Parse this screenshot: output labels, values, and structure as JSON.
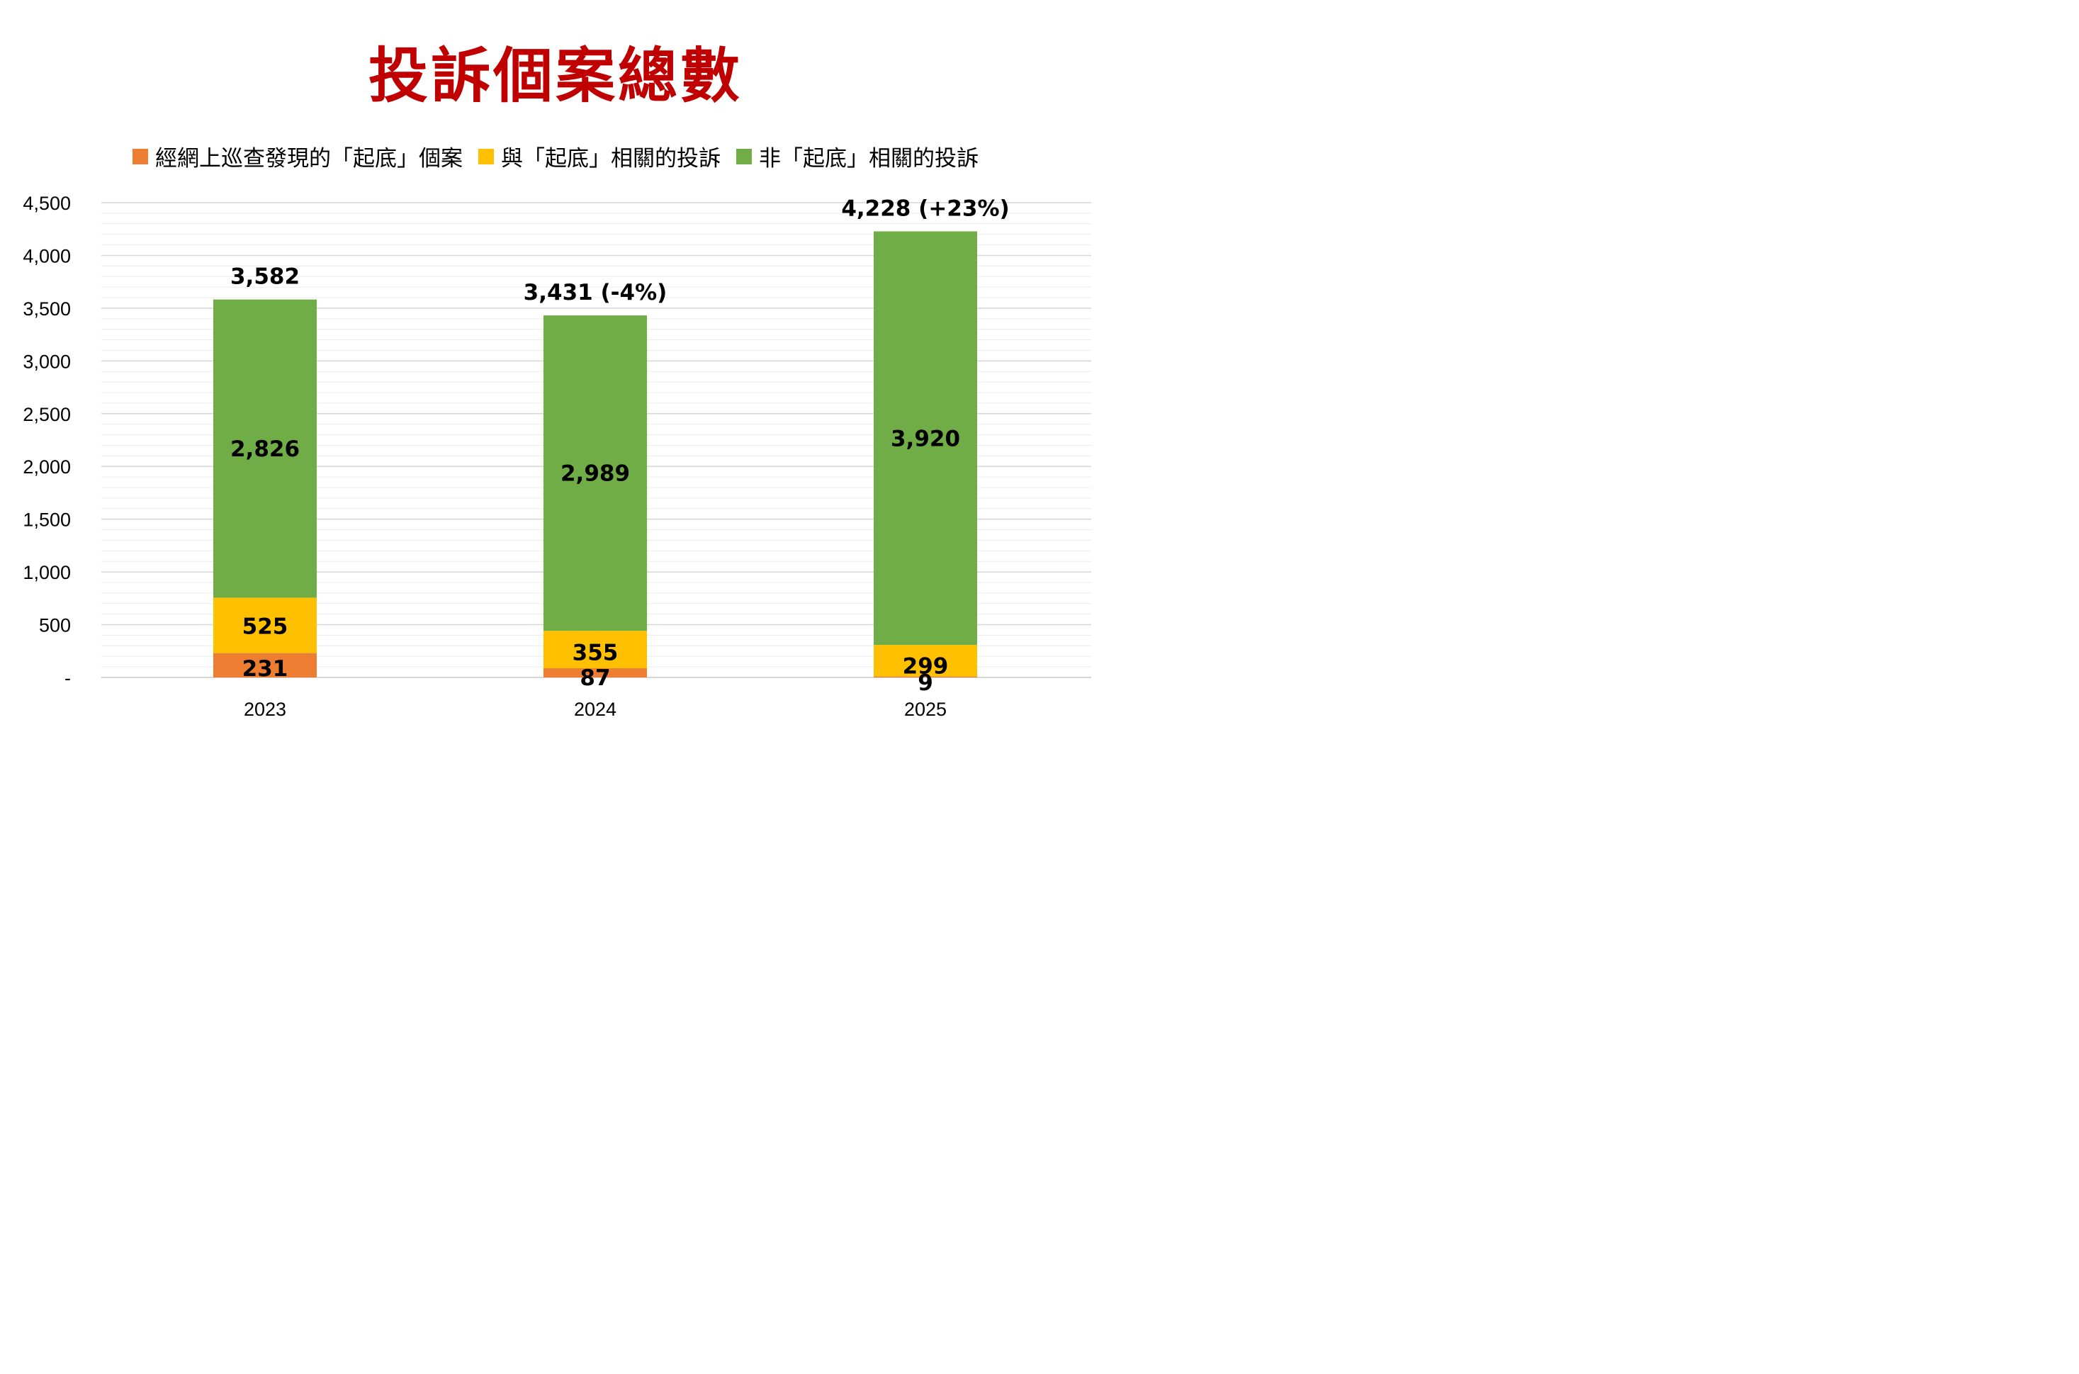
{
  "chart_data": {
    "type": "bar",
    "stacked": true,
    "title": "投訴個案總數",
    "categories": [
      "2023",
      "2024",
      "2025"
    ],
    "series": [
      {
        "name": "經網上巡查發現的「起底」個案",
        "color": "#ed7d31",
        "values": [
          231,
          87,
          9
        ]
      },
      {
        "name": "與「起底」相關的投訴",
        "color": "#ffc000",
        "values": [
          525,
          355,
          299
        ]
      },
      {
        "name": "非「起底」相關的投訴",
        "color": "#70ad47",
        "values": [
          2826,
          2989,
          3920
        ]
      }
    ],
    "totals": [
      "3,582",
      "3,431 (-4%)",
      "4,228 (+23%)"
    ],
    "ylim": [
      0,
      4500
    ],
    "yticks": [
      {
        "value": 0,
        "label": "-"
      },
      {
        "value": 500,
        "label": "500"
      },
      {
        "value": 1000,
        "label": "1,000"
      },
      {
        "value": 1500,
        "label": "1,500"
      },
      {
        "value": 2000,
        "label": "2,000"
      },
      {
        "value": 2500,
        "label": "2,500"
      },
      {
        "value": 3000,
        "label": "3,000"
      },
      {
        "value": 3500,
        "label": "3,500"
      },
      {
        "value": 4000,
        "label": "4,000"
      },
      {
        "value": 4500,
        "label": "4,500"
      }
    ],
    "grid": true,
    "legend_position": "top"
  }
}
